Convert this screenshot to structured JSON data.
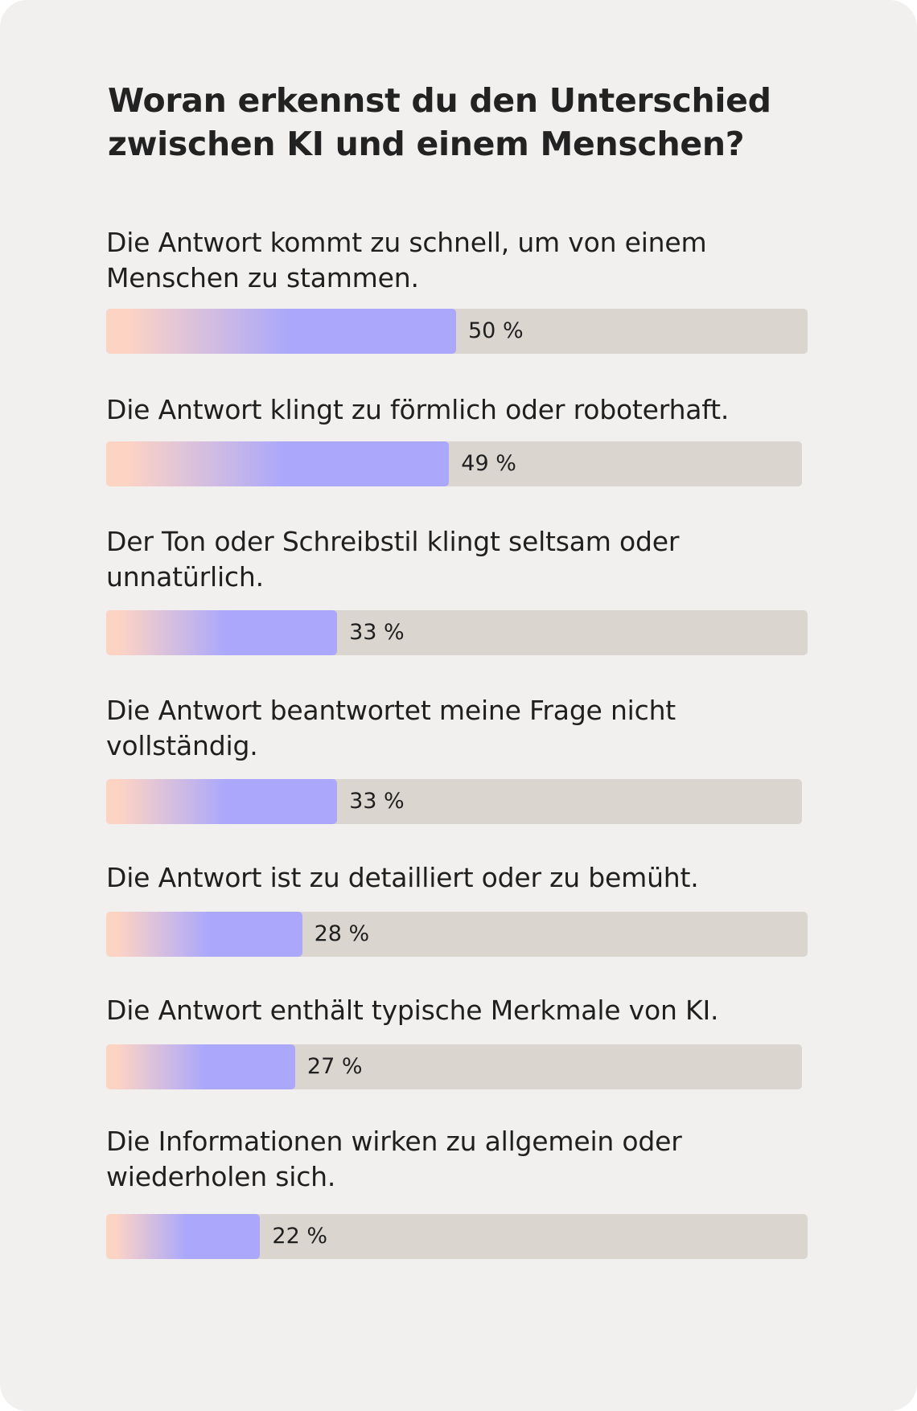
{
  "colors": {
    "background": "#f1f0ee",
    "track": "#dbd5d0",
    "gradient_start": "#fdd3c4",
    "gradient_end": "#aba8fb",
    "text": "#1f1f1f"
  },
  "chart_data": {
    "type": "bar",
    "orientation": "horizontal",
    "title": "Woran erkennst du den Unterschied zwischen KI und einem Menschen?",
    "categories": [
      "Die Antwort kommt zu schnell, um von einem Menschen zu stammen.",
      "Die Antwort klingt zu förmlich oder roboterhaft.",
      "Der Ton oder Schreibstil klingt seltsam oder unnatürlich.",
      "Die Antwort beantwortet meine Frage nicht vollständig.",
      "Die Antwort ist zu detailliert oder zu bemüht.",
      "Die Antwort enthält typische Merkmale von KI.",
      "Die Informationen wirken zu allgemein oder wiederholen sich."
    ],
    "values": [
      50,
      49,
      33,
      33,
      28,
      27,
      22
    ],
    "value_labels": [
      "50 %",
      "49 %",
      "33 %",
      "33 %",
      "28 %",
      "27 %",
      "22 %"
    ],
    "unit": "%",
    "xlim": [
      0,
      100
    ],
    "grid": false,
    "legend": "none"
  }
}
